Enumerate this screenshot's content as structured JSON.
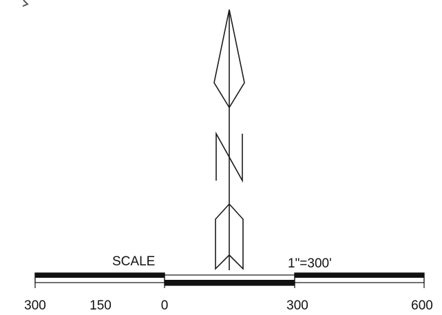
{
  "north_arrow": {
    "letter": "N",
    "color": "#1a1a1a"
  },
  "scale_bar": {
    "title": "SCALE",
    "ratio": "1\"=300'",
    "tick_labels": [
      "300",
      "150",
      "0",
      "300",
      "600"
    ],
    "bar_color": "#111111",
    "fill_color": "#ffffff"
  }
}
